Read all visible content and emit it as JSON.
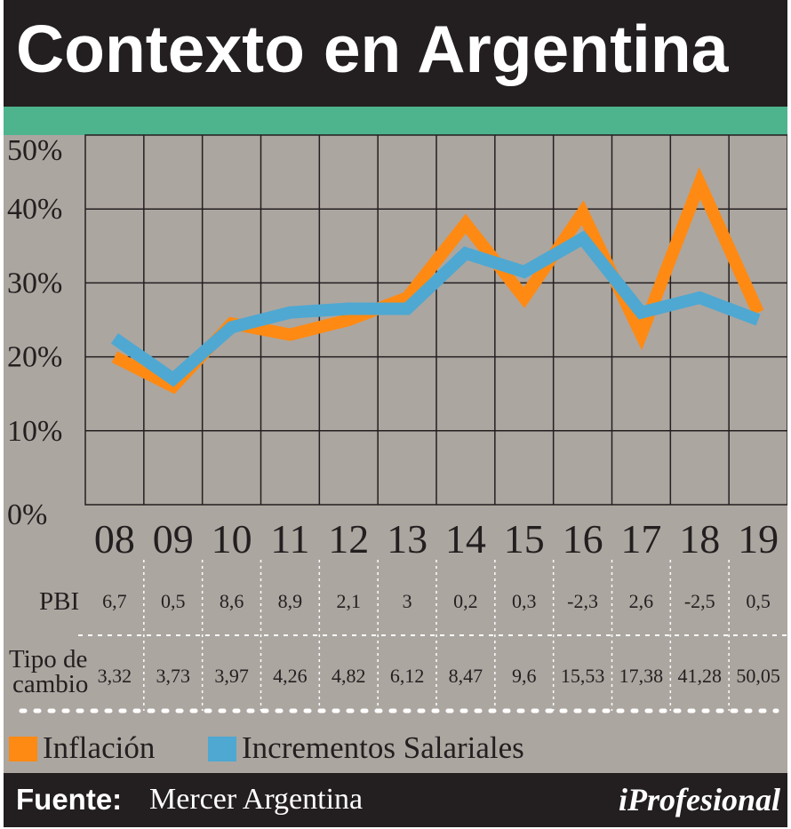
{
  "title": "Contexto en Argentina",
  "chart_data": {
    "type": "line",
    "categories": [
      "08",
      "09",
      "10",
      "11",
      "12",
      "13",
      "14",
      "15",
      "16",
      "17",
      "18",
      "19"
    ],
    "series": [
      {
        "name": "Inflación",
        "color": "#ff8a13",
        "values": [
          20,
          16,
          24.5,
          23,
          25,
          28,
          38,
          28,
          39.5,
          23,
          43.5,
          26
        ]
      },
      {
        "name": "Incrementos Salariales",
        "color": "#4ea8d2",
        "values": [
          22.5,
          17,
          24,
          26,
          26.5,
          26.5,
          34,
          31.5,
          36,
          26,
          28,
          25
        ]
      }
    ],
    "ylim": [
      0,
      50
    ],
    "yticks": [
      "0%",
      "10%",
      "20%",
      "30%",
      "40%",
      "50%"
    ],
    "grid": true,
    "legend_position": "bottom-left"
  },
  "table": {
    "rows": [
      {
        "label": "PBI",
        "values": [
          "6,7",
          "0,5",
          "8,6",
          "8,9",
          "2,1",
          "3",
          "0,2",
          "0,3",
          "-2,3",
          "2,6",
          "-2,5",
          "0,5"
        ]
      },
      {
        "label_line1": "Tipo de",
        "label_line2": "cambio",
        "values": [
          "3,32",
          "3,73",
          "3,97",
          "4,26",
          "4,82",
          "6,12",
          "8,47",
          "9,6",
          "15,53",
          "17,38",
          "41,28",
          "50,05"
        ]
      }
    ]
  },
  "legend": {
    "items": [
      {
        "label": "Inflación",
        "color": "#ff8a13"
      },
      {
        "label": "Incrementos Salariales",
        "color": "#4ea8d2"
      }
    ]
  },
  "source": {
    "key": "Fuente:",
    "value": "Mercer Argentina"
  },
  "brand": "iProfesional"
}
